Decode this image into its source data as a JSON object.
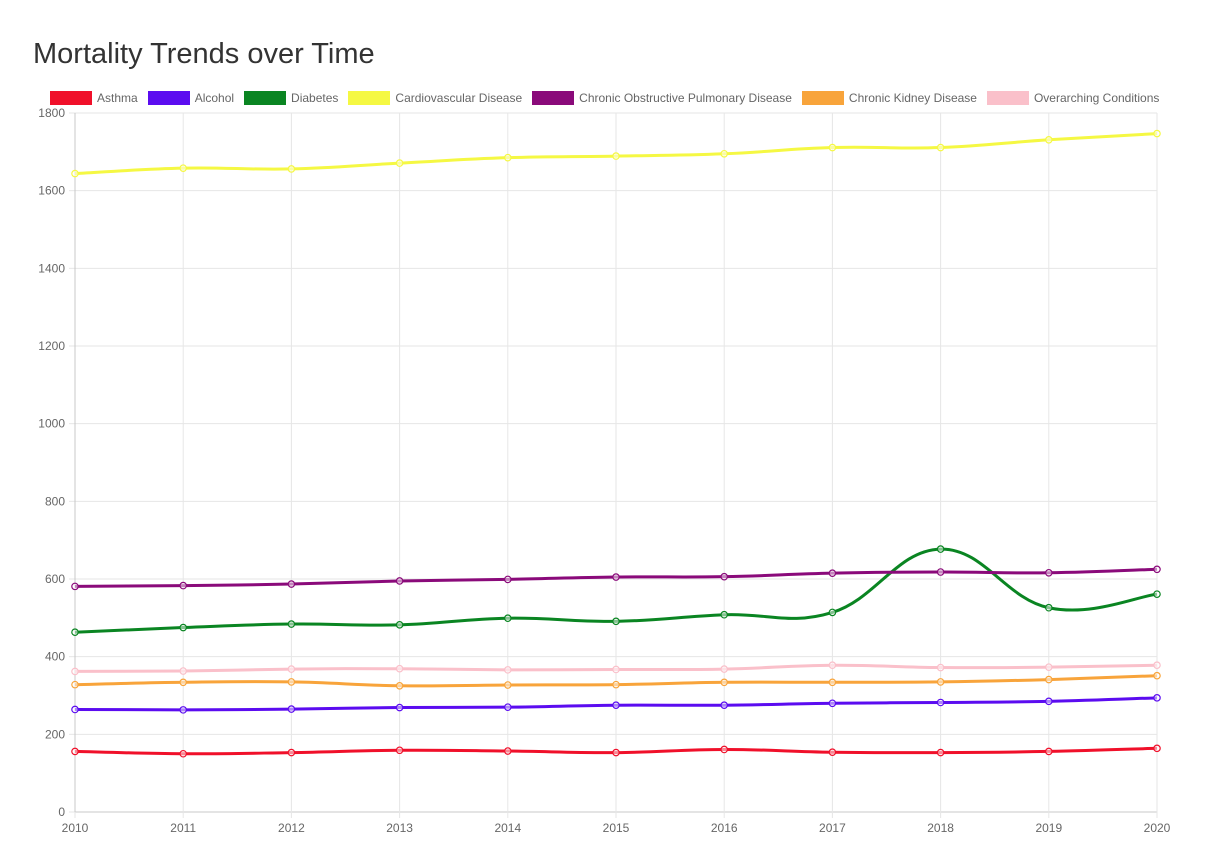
{
  "chart_data": {
    "type": "line",
    "title": "Mortality Trends over Time",
    "xlabel": "",
    "ylabel": "",
    "x": [
      "2010",
      "2011",
      "2012",
      "2013",
      "2014",
      "2015",
      "2016",
      "2017",
      "2018",
      "2019",
      "2020"
    ],
    "ylim": [
      0,
      1800
    ],
    "yticks": [
      "0",
      "200",
      "400",
      "600",
      "800",
      "1000",
      "1200",
      "1400",
      "1600",
      "1800"
    ],
    "grid": true,
    "legend": "top",
    "series": [
      {
        "name": "Asthma",
        "color": "#f0102a",
        "values": [
          156,
          150,
          153,
          159,
          157,
          153,
          161,
          154,
          153,
          156,
          164
        ]
      },
      {
        "name": "Alcohol",
        "color": "#5b0cf0",
        "values": [
          264,
          263,
          265,
          269,
          270,
          275,
          275,
          280,
          282,
          285,
          294
        ]
      },
      {
        "name": "Diabetes",
        "color": "#0a8522",
        "values": [
          463,
          475,
          484,
          482,
          499,
          491,
          508,
          514,
          677,
          526,
          561
        ]
      },
      {
        "name": "Cardiovascular Disease",
        "color": "#f5f843",
        "values": [
          1644,
          1658,
          1656,
          1671,
          1685,
          1689,
          1695,
          1711,
          1711,
          1731,
          1747
        ]
      },
      {
        "name": "Chronic Obstructive Pulmonary Disease",
        "color": "#8a0a7a",
        "values": [
          581,
          583,
          587,
          595,
          599,
          605,
          606,
          615,
          618,
          616,
          625
        ]
      },
      {
        "name": "Chronic Kidney Disease",
        "color": "#f8a43b",
        "values": [
          328,
          334,
          335,
          325,
          327,
          328,
          334,
          334,
          335,
          341,
          351
        ]
      },
      {
        "name": "Overarching Conditions",
        "color": "#fac0ca",
        "values": [
          362,
          363,
          368,
          369,
          366,
          367,
          368,
          378,
          372,
          373,
          378
        ]
      }
    ]
  }
}
